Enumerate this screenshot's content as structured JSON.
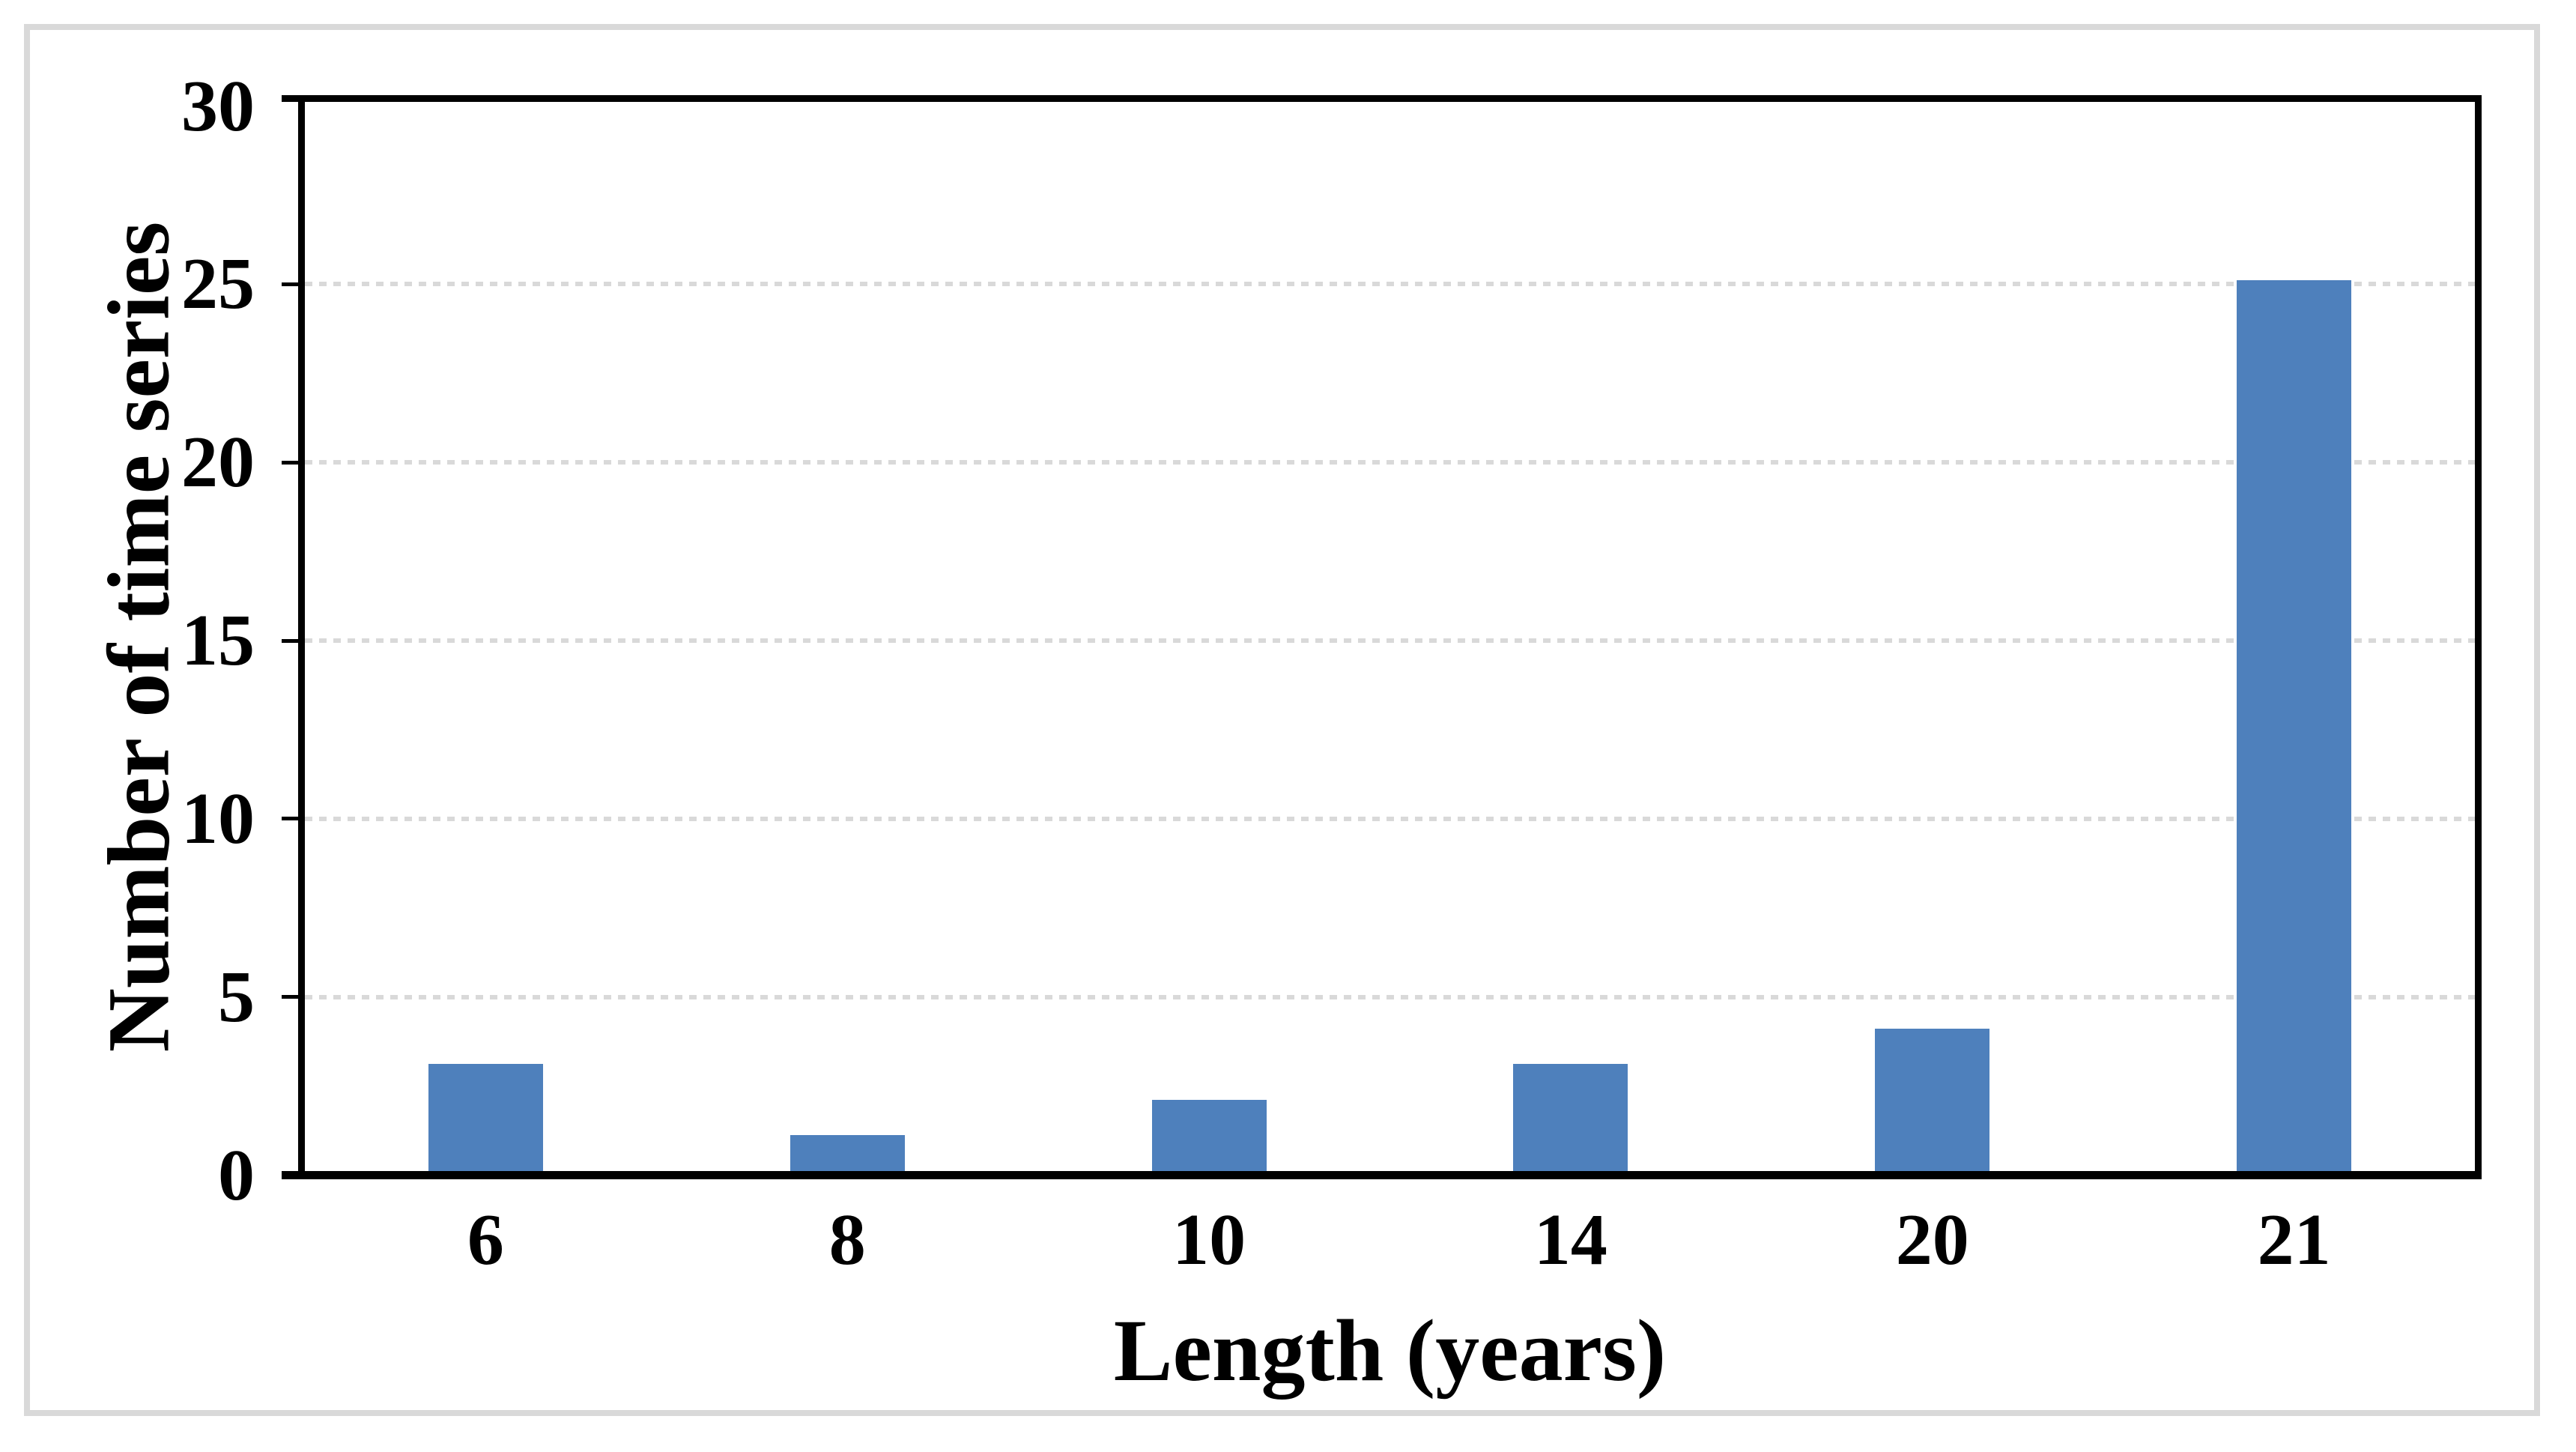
{
  "figure": {
    "background_color": "#ffffff",
    "frame_color": "#d9d9d9"
  },
  "chart_data": {
    "type": "bar",
    "title": "",
    "categories": [
      "6",
      "8",
      "10",
      "14",
      "20",
      "21"
    ],
    "values": [
      3,
      1,
      2,
      3,
      4,
      25
    ],
    "xlabel": "Length (years)",
    "ylabel": "Number of time series",
    "ylim": [
      0,
      30
    ],
    "yticks": [
      0,
      5,
      10,
      15,
      20,
      25,
      30
    ],
    "ytick_interval": 5,
    "grid": "horizontal dotted gridlines at each ytick (except 0 and 30)",
    "legend_position": "none",
    "bar_color": "#4e80bc",
    "gridline_color": "#d9d9d9",
    "axis_color": "#000000",
    "tick_label_color": "#000000"
  }
}
